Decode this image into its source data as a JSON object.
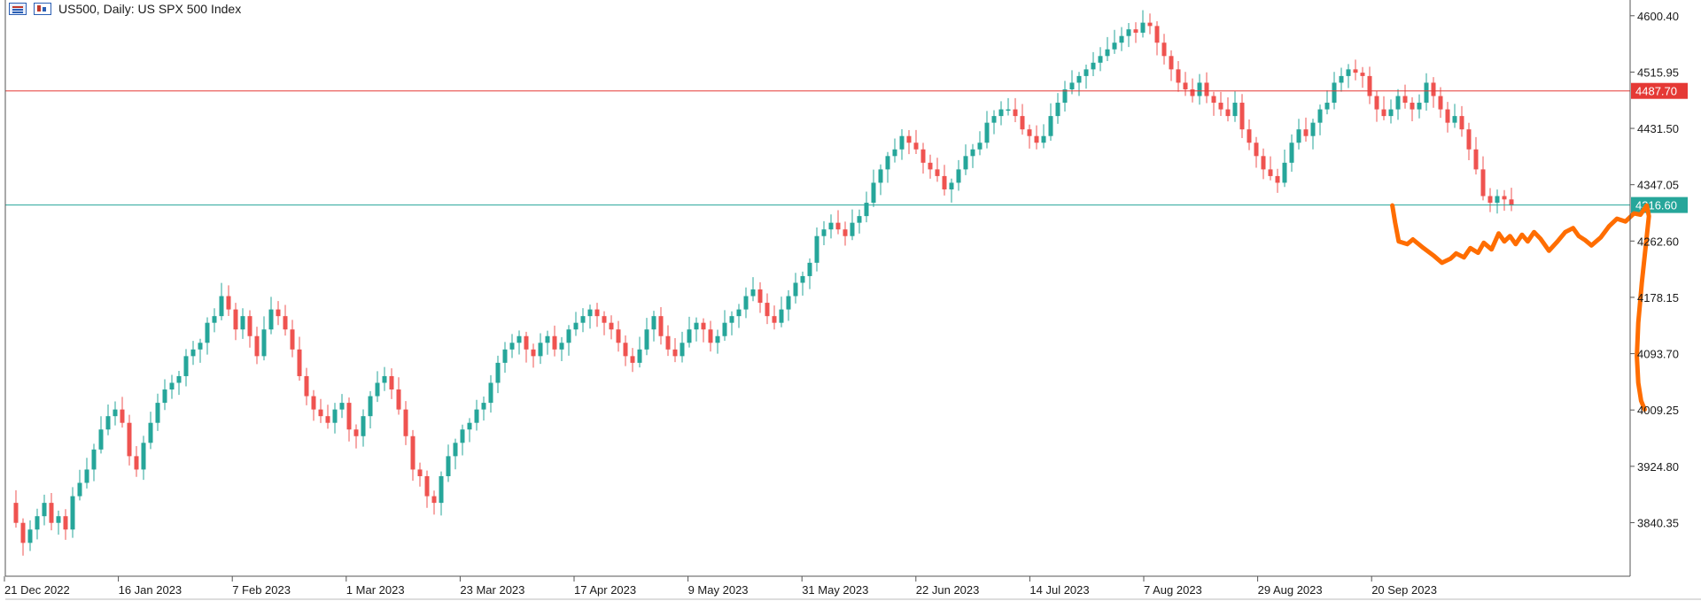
{
  "header": {
    "symbol_label": "US500, Daily:  US SPX 500 Index",
    "icons": [
      "price-list-icon",
      "chart-properties-icon"
    ]
  },
  "colors": {
    "bull": "#26a69a",
    "bear": "#ef5350",
    "red_line": "#e53935",
    "teal_line": "#26a69a",
    "drawing": "#ff6d00",
    "axis": "#555555"
  },
  "chart_data": {
    "type": "candlestick",
    "title": "",
    "xlabel": "",
    "ylabel": "",
    "y_tick_labels": [
      "4600.40",
      "4515.95",
      "4431.50",
      "4347.05",
      "4262.60",
      "4178.15",
      "4093.70",
      "4009.25",
      "3924.80",
      "3840.35"
    ],
    "ylim": [
      3760,
      4624
    ],
    "x_tick_labels": [
      "21 Dec 2022",
      "16 Jan 2023",
      "7 Feb 2023",
      "1 Mar 2023",
      "23 Mar 2023",
      "17 Apr 2023",
      "9 May 2023",
      "31 May 2023",
      "22 Jun 2023",
      "14 Jul 2023",
      "7 Aug 2023",
      "29 Aug 2023",
      "20 Sep 2023"
    ],
    "horizontal_lines": [
      {
        "value": 4487.7,
        "label": "4487.70",
        "color": "#e53935"
      },
      {
        "value": 4316.6,
        "label": "4316.60",
        "color": "#26a69a"
      }
    ],
    "close_path": [
      3870,
      3840,
      3810,
      3830,
      3850,
      3870,
      3840,
      3850,
      3830,
      3880,
      3900,
      3920,
      3950,
      3980,
      4000,
      4010,
      3990,
      3940,
      3920,
      3960,
      3990,
      4020,
      4040,
      4050,
      4060,
      4090,
      4100,
      4110,
      4140,
      4150,
      4180,
      4160,
      4130,
      4150,
      4120,
      4090,
      4130,
      4160,
      4150,
      4130,
      4100,
      4060,
      4030,
      4010,
      4000,
      3990,
      4010,
      4020,
      3980,
      3970,
      4000,
      4030,
      4050,
      4060,
      4040,
      4010,
      3970,
      3920,
      3910,
      3880,
      3870,
      3910,
      3940,
      3960,
      3980,
      3990,
      4010,
      4020,
      4050,
      4080,
      4100,
      4110,
      4120,
      4100,
      4090,
      4110,
      4120,
      4100,
      4110,
      4130,
      4140,
      4150,
      4160,
      4150,
      4140,
      4130,
      4110,
      4090,
      4080,
      4100,
      4130,
      4150,
      4120,
      4100,
      4090,
      4110,
      4130,
      4140,
      4130,
      4110,
      4120,
      4140,
      4150,
      4160,
      4180,
      4190,
      4170,
      4150,
      4140,
      4160,
      4180,
      4200,
      4210,
      4230,
      4270,
      4280,
      4290,
      4280,
      4270,
      4290,
      4300,
      4320,
      4350,
      4370,
      4390,
      4400,
      4420,
      4410,
      4400,
      4380,
      4370,
      4360,
      4340,
      4350,
      4370,
      4390,
      4400,
      4410,
      4440,
      4450,
      4460,
      4460,
      4450,
      4430,
      4420,
      4410,
      4420,
      4450,
      4470,
      4490,
      4500,
      4510,
      4520,
      4530,
      4540,
      4550,
      4560,
      4570,
      4580,
      4575,
      4590,
      4585,
      4560,
      4540,
      4520,
      4500,
      4490,
      4480,
      4500,
      4480,
      4470,
      4460,
      4450,
      4470,
      4430,
      4410,
      4390,
      4370,
      4360,
      4350,
      4380,
      4410,
      4430,
      4420,
      4440,
      4460,
      4470,
      4500,
      4510,
      4520,
      4515,
      4510,
      4480,
      4460,
      4450,
      4460,
      4480,
      4470,
      4460,
      4470,
      4500,
      4480,
      4460,
      4440,
      4450,
      4430,
      4400,
      4370,
      4330,
      4320,
      4330,
      4325,
      4316
    ],
    "drawing_path": [
      [
        195.2,
        4316
      ],
      [
        195.6,
        4290
      ],
      [
        196.1,
        4262
      ],
      [
        197.3,
        4258
      ],
      [
        198.1,
        4265
      ],
      [
        199.6,
        4252
      ],
      [
        201.1,
        4240
      ],
      [
        202.2,
        4230
      ],
      [
        203.4,
        4236
      ],
      [
        204.2,
        4244
      ],
      [
        205.3,
        4238
      ],
      [
        206.2,
        4252
      ],
      [
        207.3,
        4245
      ],
      [
        208.1,
        4260
      ],
      [
        209.2,
        4250
      ],
      [
        210.2,
        4274
      ],
      [
        211.0,
        4262
      ],
      [
        211.8,
        4270
      ],
      [
        212.6,
        4258
      ],
      [
        213.5,
        4272
      ],
      [
        214.3,
        4262
      ],
      [
        215.2,
        4276
      ],
      [
        216.1,
        4266
      ],
      [
        217.3,
        4248
      ],
      [
        218.5,
        4262
      ],
      [
        219.6,
        4276
      ],
      [
        220.7,
        4282
      ],
      [
        221.5,
        4270
      ],
      [
        222.4,
        4264
      ],
      [
        223.3,
        4256
      ],
      [
        224.6,
        4268
      ],
      [
        225.8,
        4285
      ],
      [
        226.9,
        4296
      ],
      [
        228.1,
        4292
      ],
      [
        229.3,
        4304
      ],
      [
        230.2,
        4302
      ],
      [
        231.1,
        4316
      ],
      [
        231.4,
        4300
      ],
      [
        231.0,
        4260
      ],
      [
        230.4,
        4200
      ],
      [
        229.9,
        4140
      ],
      [
        229.7,
        4090
      ],
      [
        229.9,
        4050
      ],
      [
        230.3,
        4023
      ],
      [
        230.8,
        4010
      ]
    ]
  }
}
